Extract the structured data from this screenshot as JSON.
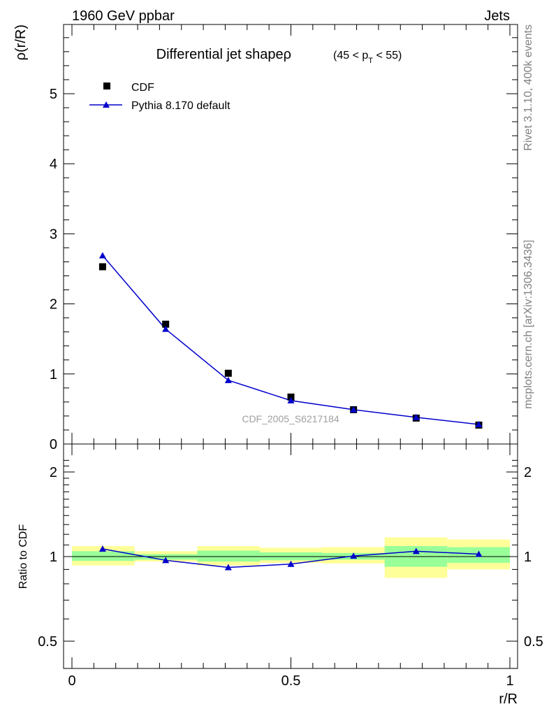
{
  "header": {
    "left": "1960 GeV ppbar",
    "right": "Jets"
  },
  "side_text": {
    "top": "Rivet 3.1.10,  400k events",
    "bottom": "mcplots.cern.ch [arXiv:1306.3436]"
  },
  "colors": {
    "data": "#000000",
    "mc": "#0000cc",
    "band_inner": "#99ff99",
    "band_outer": "#ffff99",
    "watermark": "#a0a0a0"
  },
  "chart_data": [
    {
      "type": "scatter",
      "panel": "main",
      "title": "Differential jet shapeρ",
      "title_suffix": "(45 < p",
      "title_sub": "T",
      "title_end": " < 55)",
      "ylabel": "ρ(r/R)",
      "xlabel": "r/R",
      "watermark": "CDF_2005_S6217184",
      "xlim": [
        0,
        1
      ],
      "ylim": [
        0,
        6
      ],
      "yticks": [
        0,
        1,
        2,
        3,
        4,
        5
      ],
      "ytick_labels": [
        "0",
        "1",
        "2",
        "3",
        "4",
        "5"
      ],
      "legend_position": "top-left",
      "series": [
        {
          "name": "CDF",
          "marker": "square",
          "x": [
            0.07,
            0.214,
            0.357,
            0.5,
            0.643,
            0.786,
            0.929
          ],
          "y": [
            2.53,
            1.71,
            1.01,
            0.67,
            0.49,
            0.37,
            0.27
          ]
        },
        {
          "name": "Pythia 8.170 default",
          "marker": "triangle",
          "x": [
            0.07,
            0.214,
            0.357,
            0.5,
            0.643,
            0.786,
            0.929
          ],
          "y": [
            2.69,
            1.64,
            0.91,
            0.62,
            0.49,
            0.38,
            0.28
          ]
        }
      ]
    },
    {
      "type": "line",
      "panel": "ratio",
      "ylabel": "Ratio to CDF",
      "xlabel": "r/R",
      "xlim": [
        0,
        1
      ],
      "ylim": [
        0.35,
        2.3
      ],
      "yticks": [
        0.5,
        1,
        2
      ],
      "ytick_labels": [
        "0.5",
        "1",
        "2"
      ],
      "xticks": [
        0,
        0.5,
        1
      ],
      "xtick_labels": [
        "0",
        "0.5",
        "1"
      ],
      "reference_line": 1,
      "bins": [
        [
          0,
          0.143
        ],
        [
          0.143,
          0.286
        ],
        [
          0.286,
          0.429
        ],
        [
          0.429,
          0.571
        ],
        [
          0.571,
          0.714
        ],
        [
          0.714,
          0.857
        ],
        [
          0.857,
          1.0
        ]
      ],
      "band_inner": [
        [
          0.965,
          1.045
        ],
        [
          0.975,
          1.02
        ],
        [
          0.96,
          1.05
        ],
        [
          0.97,
          1.035
        ],
        [
          0.975,
          1.03
        ],
        [
          0.92,
          1.09
        ],
        [
          0.95,
          1.08
        ]
      ],
      "band_outer": [
        [
          0.93,
          1.09
        ],
        [
          0.96,
          1.045
        ],
        [
          0.93,
          1.09
        ],
        [
          0.95,
          1.075
        ],
        [
          0.945,
          1.08
        ],
        [
          0.84,
          1.17
        ],
        [
          0.9,
          1.15
        ]
      ],
      "series": [
        {
          "name": "Pythia 8.170 default",
          "x": [
            0.07,
            0.214,
            0.357,
            0.5,
            0.643,
            0.786,
            0.929
          ],
          "y": [
            1.065,
            0.97,
            0.915,
            0.94,
            1.005,
            1.045,
            1.02
          ]
        }
      ]
    }
  ]
}
